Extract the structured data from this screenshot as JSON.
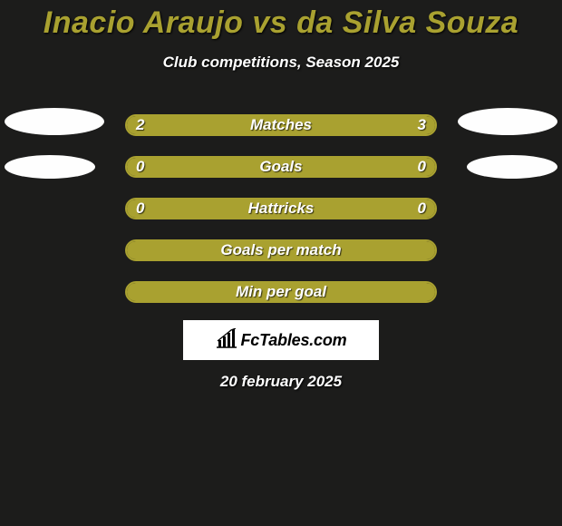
{
  "colors": {
    "background": "#1c1c1b",
    "title": "#a9a130",
    "text": "#ffffff",
    "bar_border": "#a9a130",
    "bar_fill_left": "#a9a130",
    "bar_fill_right": "#a9a130",
    "bar_empty": "#1c1c1b",
    "ellipse": "#fefefe",
    "brand_bg": "#ffffff",
    "brand_text": "#000000"
  },
  "header": {
    "title": "Inacio Araujo vs da Silva Souza",
    "subtitle": "Club competitions, Season 2025"
  },
  "rows": [
    {
      "label": "Matches",
      "left_value": "2",
      "right_value": "3",
      "left_fill_pct": 40,
      "right_fill_pct": 60,
      "show_values": true,
      "ellipse_left": "big",
      "ellipse_right": "big"
    },
    {
      "label": "Goals",
      "left_value": "0",
      "right_value": "0",
      "left_fill_pct": 100,
      "right_fill_pct": 0,
      "show_values": true,
      "ellipse_left": "small",
      "ellipse_right": "small"
    },
    {
      "label": "Hattricks",
      "left_value": "0",
      "right_value": "0",
      "left_fill_pct": 100,
      "right_fill_pct": 0,
      "show_values": true,
      "ellipse_left": "",
      "ellipse_right": ""
    },
    {
      "label": "Goals per match",
      "left_value": "",
      "right_value": "",
      "left_fill_pct": 100,
      "right_fill_pct": 0,
      "show_values": false,
      "ellipse_left": "",
      "ellipse_right": ""
    },
    {
      "label": "Min per goal",
      "left_value": "",
      "right_value": "",
      "left_fill_pct": 100,
      "right_fill_pct": 0,
      "show_values": false,
      "ellipse_left": "",
      "ellipse_right": ""
    }
  ],
  "brand": {
    "text": "FcTables.com"
  },
  "footer": {
    "date": "20 february 2025"
  }
}
